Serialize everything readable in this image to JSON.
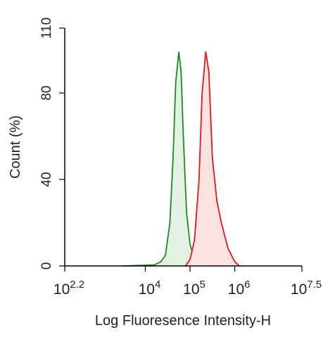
{
  "chart_data": {
    "type": "histogram-overlay",
    "x_label": "Log Fluoresence Intensity-H",
    "y_label": "Count  (%)",
    "x_log": true,
    "xlim": [
      158.49,
      31622777
    ],
    "xticks": [
      {
        "value": 158.49,
        "label": "10",
        "exponent": "2.2"
      },
      {
        "value": 10000,
        "label": "10",
        "exponent": "4"
      },
      {
        "value": 100000,
        "label": "10",
        "exponent": "5"
      },
      {
        "value": 1000000,
        "label": "10",
        "exponent": "6"
      },
      {
        "value": 31622777,
        "label": "10",
        "exponent": "7.5"
      }
    ],
    "ylim": [
      0,
      110
    ],
    "yticks": [
      0,
      40,
      80,
      110
    ],
    "series": [
      {
        "color": "#1f8a1f",
        "fill": "#e3f1e3",
        "x": [
          3162,
          15849,
          22387,
          28184,
          35481,
          41687,
          47863,
          56234,
          63096,
          70795,
          83176,
          100000,
          125893,
          158489,
          199526
        ],
        "values": [
          0,
          0.5,
          2,
          5,
          20,
          50,
          85,
          99,
          90,
          60,
          25,
          10,
          3,
          0.5,
          0
        ]
      },
      {
        "color": "#e01818",
        "fill": "#fbe1e1",
        "x": [
          79433,
          100000,
          125893,
          158489,
          186209,
          223872,
          263027,
          316228,
          398107,
          501187,
          707946,
          1000000,
          1258925
        ],
        "values": [
          0,
          3,
          12,
          40,
          80,
          99,
          90,
          50,
          30,
          20,
          8,
          2,
          0
        ]
      }
    ]
  }
}
